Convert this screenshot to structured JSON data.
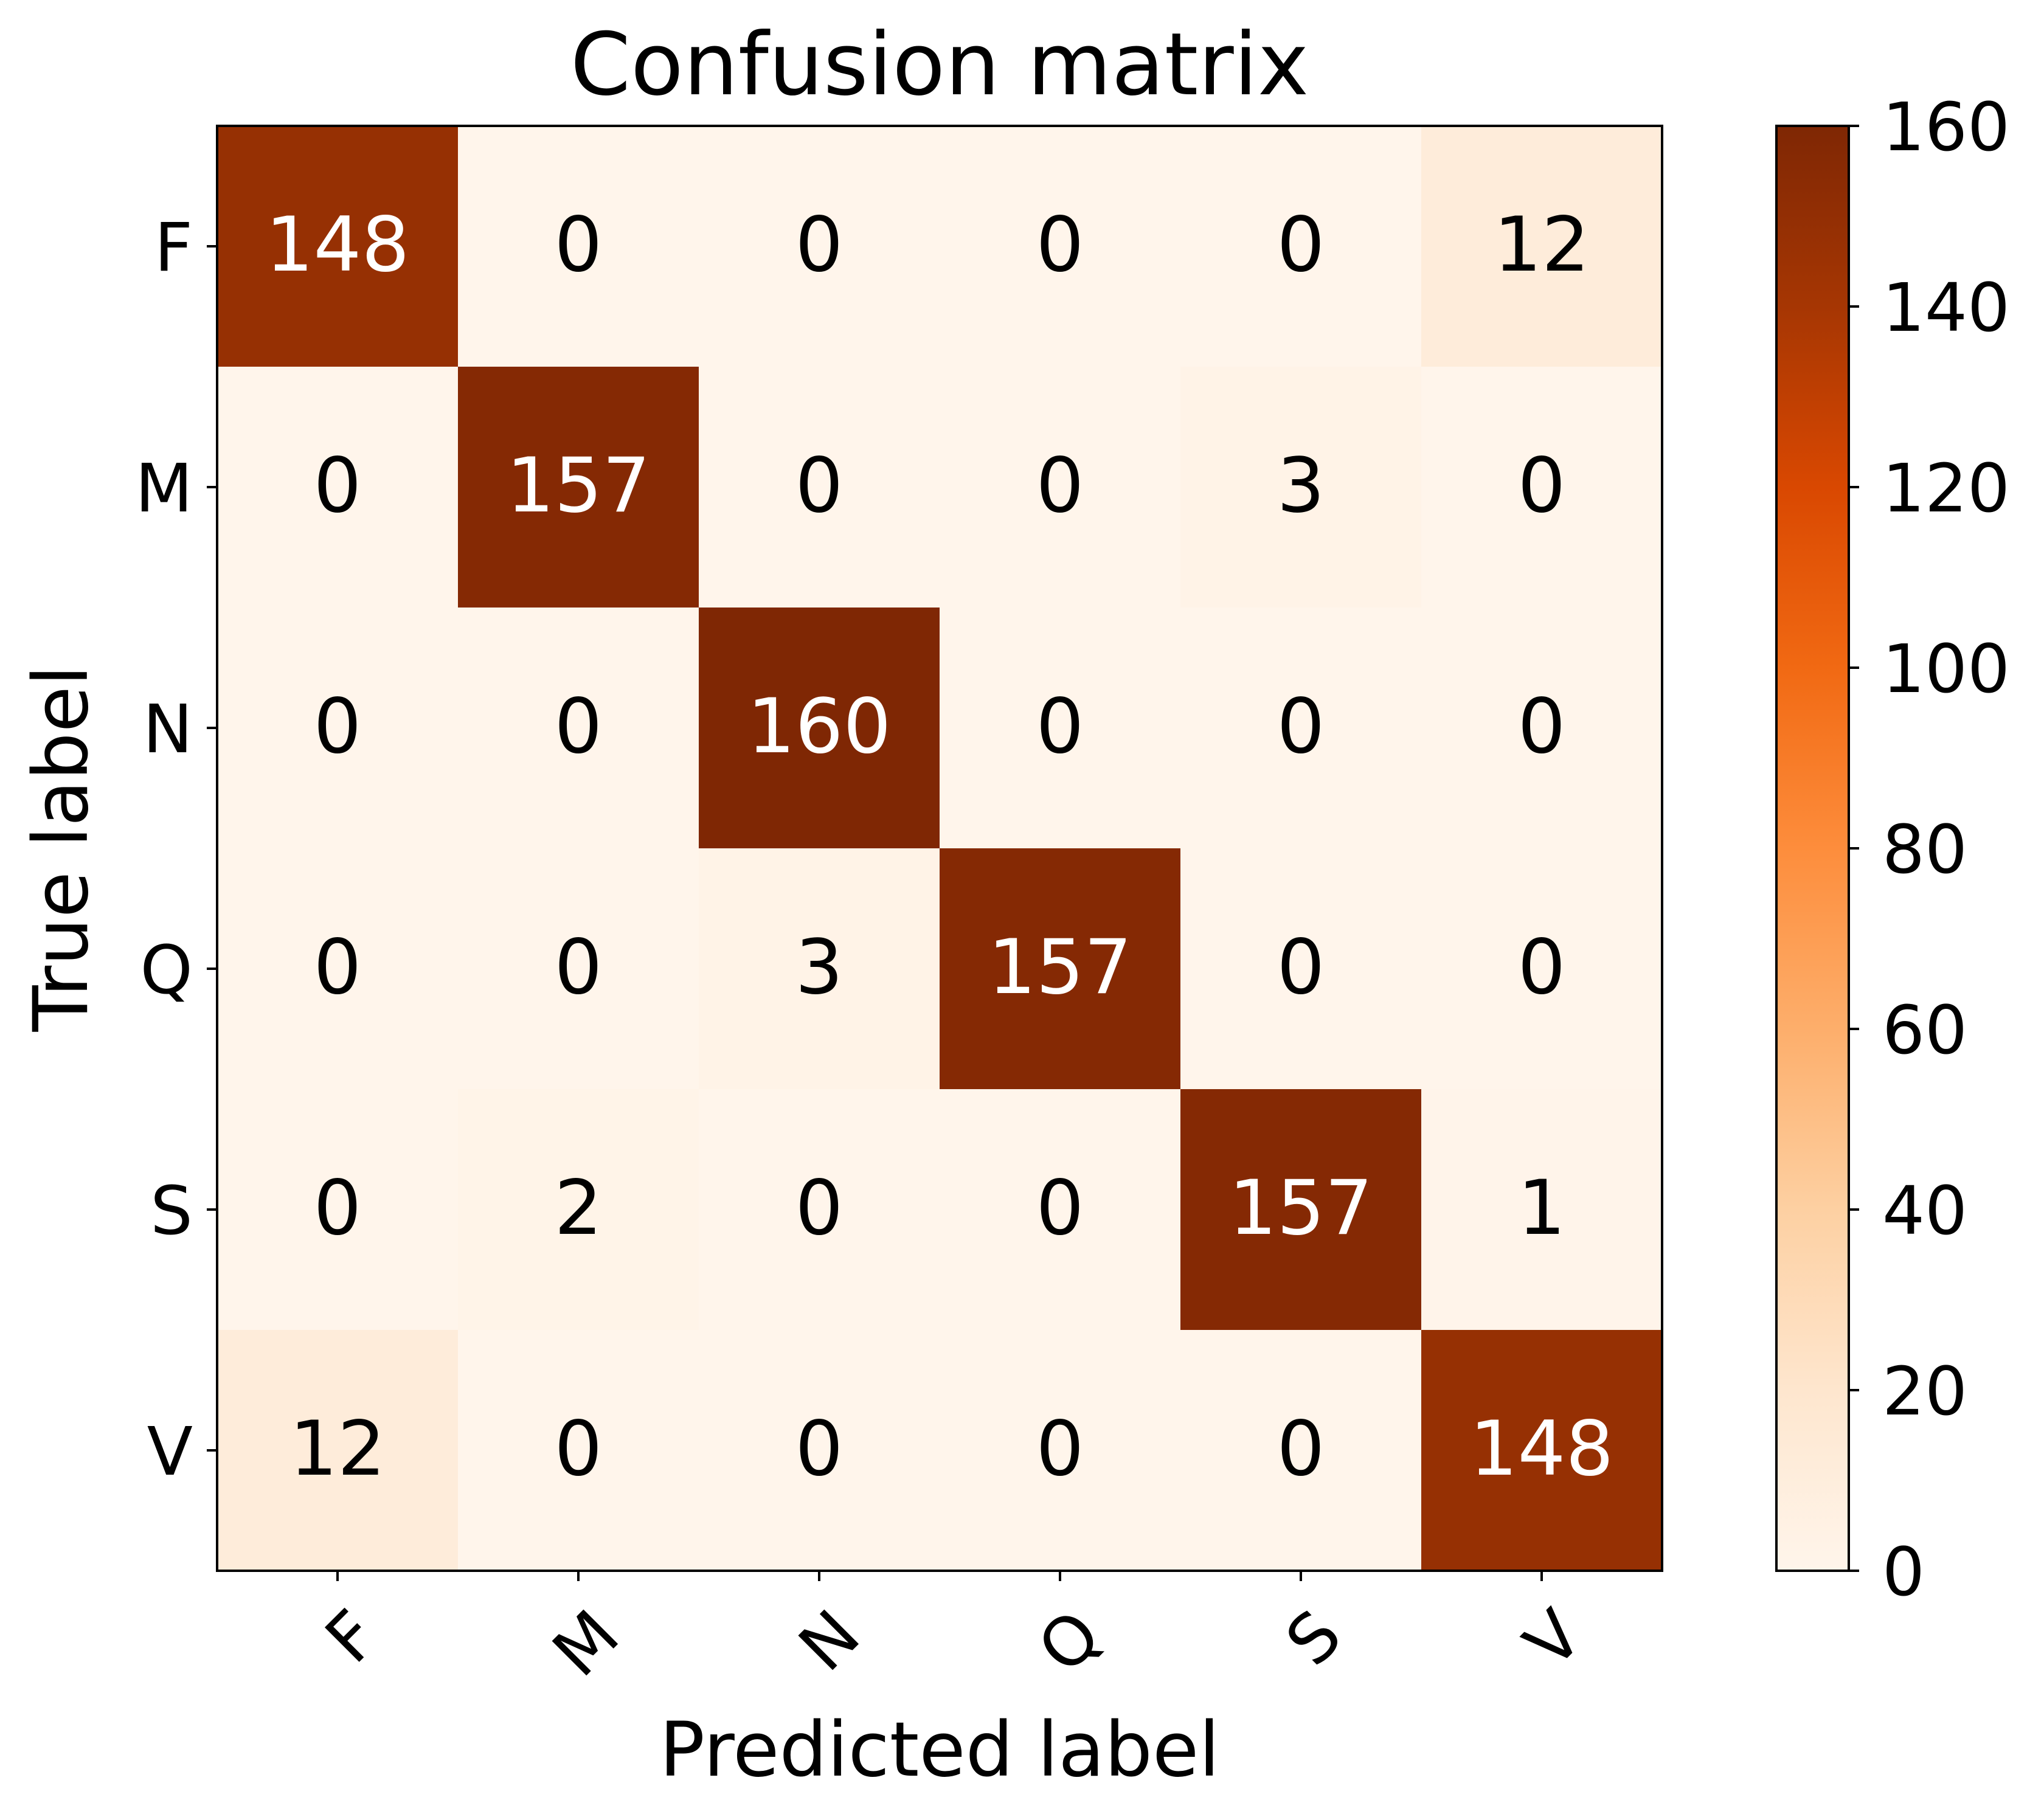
{
  "chart_data": {
    "type": "heatmap",
    "title": "Confusion matrix",
    "xlabel": "Predicted label",
    "ylabel": "True label",
    "x_categories": [
      "F",
      "M",
      "N",
      "Q",
      "S",
      "V"
    ],
    "y_categories": [
      "F",
      "M",
      "N",
      "Q",
      "S",
      "V"
    ],
    "values": [
      [
        148,
        0,
        0,
        0,
        0,
        12
      ],
      [
        0,
        157,
        0,
        0,
        3,
        0
      ],
      [
        0,
        0,
        160,
        0,
        0,
        0
      ],
      [
        0,
        0,
        3,
        157,
        0,
        0
      ],
      [
        0,
        2,
        0,
        0,
        157,
        1
      ],
      [
        12,
        0,
        0,
        0,
        0,
        148
      ]
    ],
    "colormap": "Oranges",
    "color_range": [
      0,
      160
    ],
    "colorbar": {
      "ticks": [
        0,
        20,
        40,
        60,
        80,
        100,
        120,
        140,
        160
      ],
      "tick_labels": [
        "0",
        "20",
        "40",
        "60",
        "80",
        "100",
        "120",
        "140",
        "160"
      ]
    },
    "xtick_rotation_deg": 45,
    "grid": false
  }
}
